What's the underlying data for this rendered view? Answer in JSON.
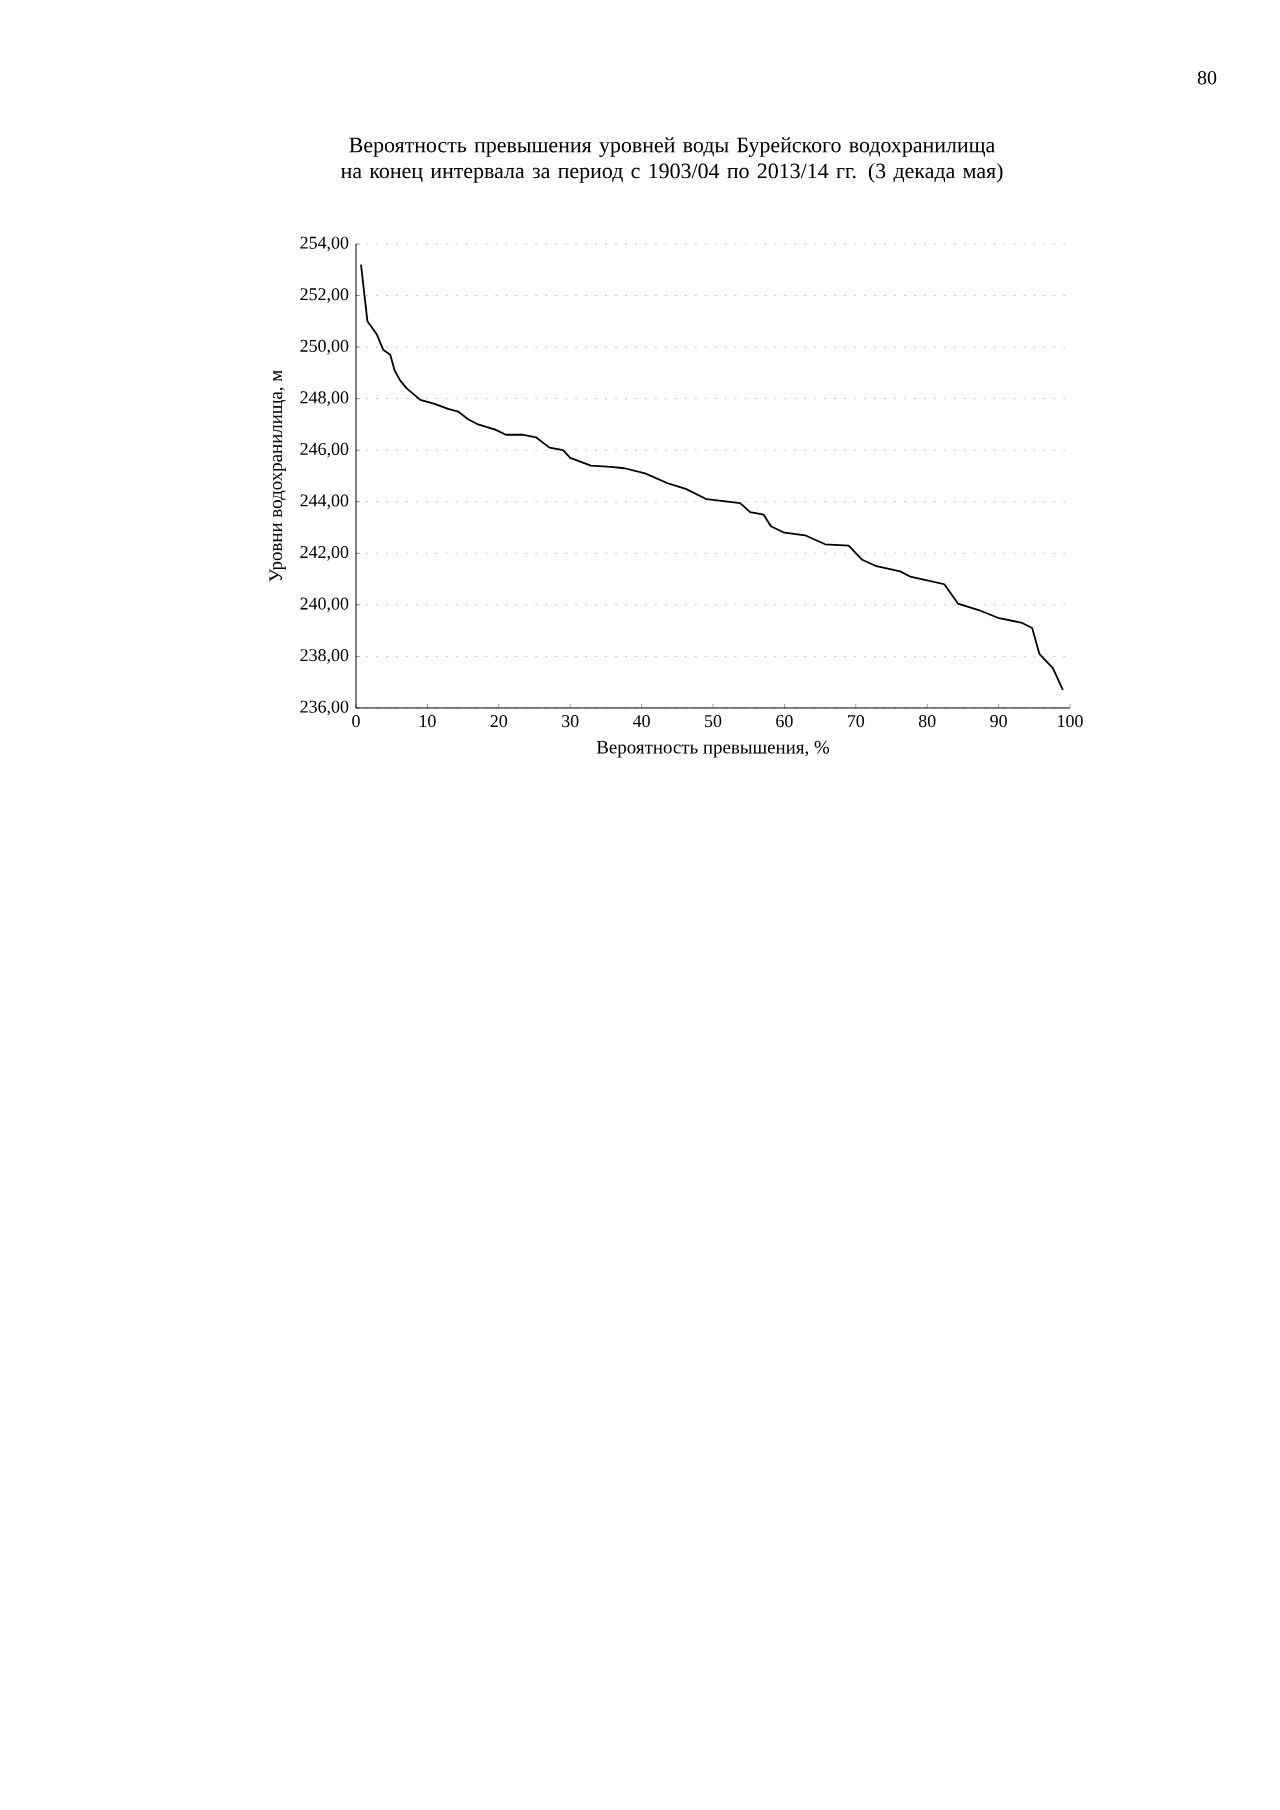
{
  "chart_data": {
    "type": "line",
    "title": "Вероятность превышения уровней воды Бурейского водохранилища на конец интервала за период с 1903/04 по 2013/14 гг. (3 декада мая)",
    "xlabel": "Вероятность превышения, %",
    "ylabel": "Уровни водохранилища, м",
    "annotations": [
      "80"
    ],
    "x": [
      0.7,
      1.6,
      2.9,
      3.8,
      4.8,
      5.4,
      6.2,
      7.1,
      9.0,
      11.0,
      12.9,
      14.3,
      15.7,
      17.1,
      19.5,
      21.0,
      23.3,
      25.2,
      27.1,
      29.0,
      30.0,
      32.9,
      35.7,
      37.6,
      40.5,
      43.8,
      46.2,
      49.1,
      53.8,
      55.2,
      57.1,
      58.1,
      60.0,
      62.9,
      65.7,
      69.0,
      70.9,
      72.9,
      76.2,
      77.6,
      80.0,
      82.4,
      84.3,
      87.2,
      89.9,
      93.3,
      94.7,
      95.7,
      97.6,
      99.0
    ],
    "values": [
      253.2,
      251.0,
      250.5,
      249.9,
      249.7,
      249.1,
      248.7,
      248.4,
      247.95,
      247.8,
      247.6,
      247.5,
      247.2,
      247.0,
      246.8,
      246.6,
      246.6,
      246.5,
      246.1,
      246.0,
      245.7,
      245.4,
      245.35,
      245.3,
      245.1,
      244.7,
      244.5,
      244.1,
      243.95,
      243.6,
      243.5,
      243.05,
      242.8,
      242.7,
      242.35,
      242.3,
      241.75,
      241.5,
      241.3,
      241.1,
      240.95,
      240.8,
      240.05,
      239.8,
      239.5,
      239.3,
      239.1,
      238.1,
      237.55,
      236.7
    ],
    "color": "#000000",
    "xlim": [
      0,
      100
    ],
    "ylim": [
      236,
      254
    ],
    "xticks": [
      0,
      10,
      20,
      30,
      40,
      50,
      60,
      70,
      80,
      90,
      100
    ],
    "yticks": [
      {
        "value": 236,
        "label": "236,00"
      },
      {
        "value": 238,
        "label": "238,00"
      },
      {
        "value": 240,
        "label": "240,00"
      },
      {
        "value": 242,
        "label": "242,00"
      },
      {
        "value": 244,
        "label": "244,00"
      },
      {
        "value": 246,
        "label": "246,00"
      },
      {
        "value": 248,
        "label": "248,00"
      },
      {
        "value": 250,
        "label": "250,00"
      },
      {
        "value": 252,
        "label": "252,00"
      },
      {
        "value": 254,
        "label": "254,00"
      }
    ],
    "grid": "y",
    "marker": "none",
    "line_style": "solid"
  }
}
